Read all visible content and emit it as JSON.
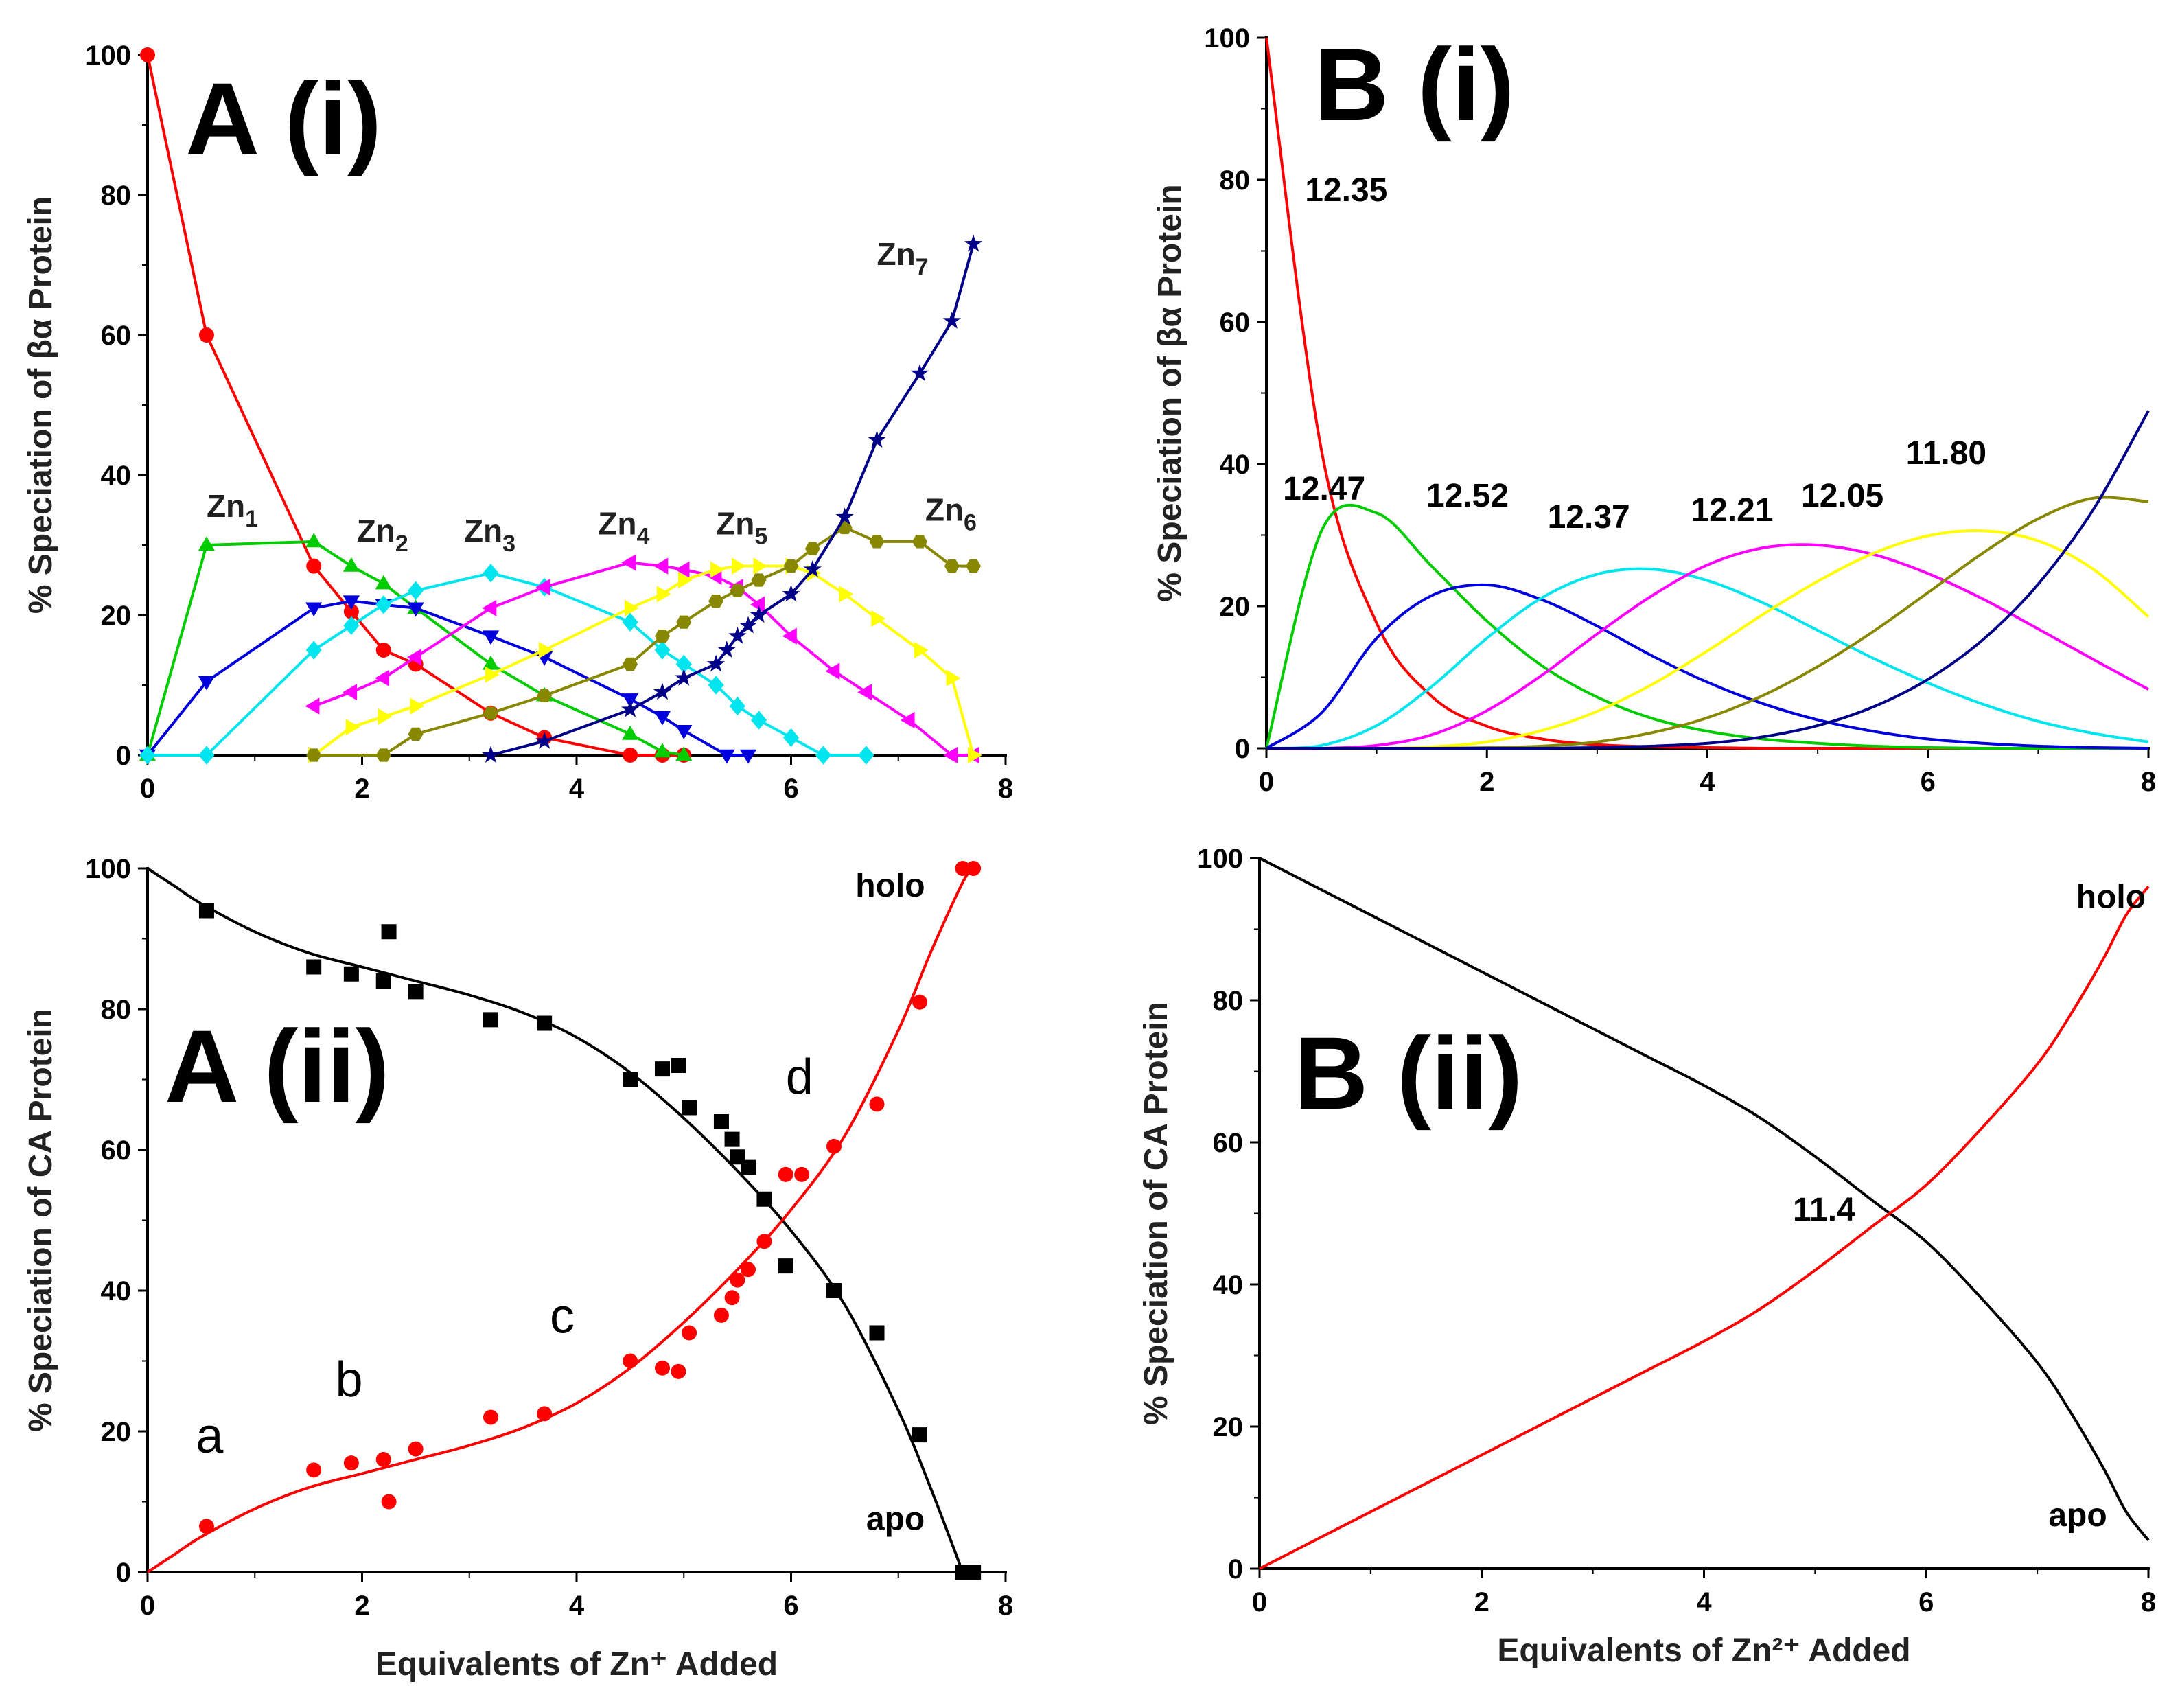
{
  "figure": {
    "colors": {
      "axis": "#000000"
    },
    "icons": [
      "marker-circle-icon",
      "marker-triangle-up-icon",
      "marker-triangle-down-icon",
      "marker-diamond-icon",
      "marker-triangle-left-icon",
      "marker-triangle-right-icon",
      "marker-hexagon-icon",
      "marker-star-icon",
      "marker-square-icon"
    ]
  },
  "chart_data": [
    {
      "id": "Ai",
      "type": "line",
      "panel_label": "A (i)",
      "title": "",
      "xlabel": "",
      "ylabel": "% Speciation of βα Protein",
      "xlim": [
        0,
        8
      ],
      "ylim": [
        0,
        100
      ],
      "xticks": [
        0,
        2,
        4,
        6,
        8
      ],
      "yticks": [
        0,
        20,
        40,
        60,
        80,
        100
      ],
      "grid": false,
      "species_labels": [
        {
          "text": "Zn",
          "sub": "1",
          "x": 0.55,
          "y": 34
        },
        {
          "text": "Zn",
          "sub": "2",
          "x": 1.95,
          "y": 30.5
        },
        {
          "text": "Zn",
          "sub": "3",
          "x": 2.95,
          "y": 30.5
        },
        {
          "text": "Zn",
          "sub": "4",
          "x": 4.2,
          "y": 31.5
        },
        {
          "text": "Zn",
          "sub": "5",
          "x": 5.3,
          "y": 31.5
        },
        {
          "text": "Zn",
          "sub": "6",
          "x": 7.25,
          "y": 33.5
        },
        {
          "text": "Zn",
          "sub": "7",
          "x": 6.8,
          "y": 70
        }
      ],
      "series": [
        {
          "name": "Zn0",
          "color": "#ff0000",
          "marker": "circle",
          "x": [
            0,
            0.55,
            1.55,
            1.9,
            2.2,
            2.5,
            3.2,
            3.7,
            4.5,
            4.8,
            5.0
          ],
          "y": [
            100,
            60,
            27,
            20.5,
            15,
            13,
            6,
            2.5,
            0,
            0,
            0
          ]
        },
        {
          "name": "Zn1",
          "color": "#00cc00",
          "marker": "triangle-up",
          "x": [
            0,
            0.55,
            1.55,
            1.9,
            2.2,
            2.5,
            3.2,
            3.7,
            4.5,
            4.8,
            5.0
          ],
          "y": [
            0,
            30,
            30.5,
            27,
            24.5,
            21,
            13,
            8.5,
            3,
            0.5,
            0
          ]
        },
        {
          "name": "Zn2",
          "color": "#0000dd",
          "marker": "triangle-down",
          "x": [
            0,
            0.55,
            1.55,
            1.9,
            2.2,
            2.5,
            3.2,
            3.7,
            4.5,
            4.8,
            5.0,
            5.4,
            5.6
          ],
          "y": [
            0,
            10.5,
            21,
            22,
            21.5,
            21,
            17,
            14,
            8,
            5.5,
            3.5,
            0,
            0
          ]
        },
        {
          "name": "Zn3",
          "color": "#00e5ee",
          "marker": "diamond",
          "x": [
            0,
            0.55,
            1.55,
            1.9,
            2.2,
            2.5,
            3.2,
            3.7,
            4.5,
            4.8,
            5.0,
            5.3,
            5.5,
            5.7,
            6.0,
            6.3,
            6.7
          ],
          "y": [
            0,
            0,
            15,
            18.5,
            21.5,
            23.5,
            26,
            24,
            19,
            15,
            13,
            10,
            7,
            5,
            2.5,
            0,
            0
          ]
        },
        {
          "name": "Zn4",
          "color": "#ff00ff",
          "marker": "triangle-left",
          "x": [
            1.55,
            1.9,
            2.2,
            2.5,
            3.2,
            3.7,
            4.5,
            4.8,
            5.0,
            5.3,
            5.5,
            5.7,
            6.0,
            6.4,
            6.7,
            7.1,
            7.5,
            7.7
          ],
          "y": [
            7,
            9,
            11,
            14,
            21,
            24,
            27.5,
            27,
            26.5,
            25.5,
            24,
            21.5,
            17,
            12,
            9,
            5,
            0,
            0
          ]
        },
        {
          "name": "Zn5",
          "color": "#ffff00",
          "marker": "triangle-right",
          "x": [
            1.55,
            1.9,
            2.2,
            2.5,
            3.2,
            3.7,
            4.5,
            4.8,
            5.0,
            5.3,
            5.5,
            5.7,
            6.0,
            6.2,
            6.5,
            6.8,
            7.2,
            7.5,
            7.7
          ],
          "y": [
            0,
            4,
            5.5,
            7,
            11.5,
            15,
            21,
            23,
            25,
            26.5,
            27,
            27,
            27,
            26,
            23,
            19.5,
            15,
            11,
            0
          ]
        },
        {
          "name": "Zn6",
          "color": "#888800",
          "marker": "hexagon",
          "x": [
            1.55,
            2.2,
            2.5,
            3.2,
            3.7,
            4.5,
            4.8,
            5.0,
            5.3,
            5.5,
            5.7,
            6.0,
            6.2,
            6.5,
            6.8,
            7.2,
            7.5,
            7.7
          ],
          "y": [
            0,
            0,
            3,
            6,
            8.5,
            13,
            17,
            19,
            22,
            23.5,
            25,
            27,
            29.5,
            32.5,
            30.5,
            30.5,
            27,
            27
          ]
        },
        {
          "name": "Zn7",
          "color": "#000088",
          "marker": "star",
          "x": [
            3.2,
            3.7,
            4.5,
            4.8,
            5.0,
            5.3,
            5.4,
            5.5,
            5.6,
            5.7,
            6.0,
            6.2,
            6.5,
            6.8,
            7.2,
            7.5,
            7.7
          ],
          "y": [
            0,
            2,
            6.5,
            9,
            11,
            13,
            15,
            17,
            18.5,
            20,
            23,
            26.5,
            34,
            45,
            54.5,
            62,
            73
          ]
        }
      ]
    },
    {
      "id": "Bi",
      "type": "line",
      "panel_label": "B (i)",
      "title": "",
      "xlabel": "",
      "ylabel": "% Speciation of βα Protein",
      "xlim": [
        0,
        8
      ],
      "ylim": [
        0,
        100
      ],
      "xticks": [
        0,
        2,
        4,
        6,
        8
      ],
      "yticks": [
        0,
        20,
        40,
        60,
        80,
        100
      ],
      "grid": false,
      "annotations": [
        {
          "text": "12.35",
          "x": 0.35,
          "y": 77
        },
        {
          "text": "12.47",
          "x": 0.15,
          "y": 35
        },
        {
          "text": "12.52",
          "x": 1.45,
          "y": 34
        },
        {
          "text": "12.37",
          "x": 2.55,
          "y": 31
        },
        {
          "text": "12.21",
          "x": 3.85,
          "y": 32
        },
        {
          "text": "12.05",
          "x": 4.85,
          "y": 34
        },
        {
          "text": "11.80",
          "x": 5.8,
          "y": 40
        }
      ],
      "series": [
        {
          "name": "Zn0",
          "color": "#ff0000",
          "values": [
            100,
            41.9,
            17.6,
            7.3,
            3.1,
            1.3,
            0.5,
            0.2,
            0.1,
            0,
            0,
            0,
            0,
            0,
            0,
            0,
            0
          ]
        },
        {
          "name": "Zn1",
          "color": "#00cc00",
          "values": [
            0,
            30.6,
            33.1,
            25.6,
            17.9,
            11.6,
            7.2,
            4.2,
            2.4,
            1.3,
            0.7,
            0.3,
            0.1,
            0,
            0,
            0,
            0
          ]
        },
        {
          "name": "Zn2",
          "color": "#0000dd",
          "values": [
            0,
            5.0,
            15.5,
            21.5,
            23.0,
            20.9,
            17.2,
            13.0,
            9.3,
            6.3,
            4.0,
            2.4,
            1.3,
            0.7,
            0.3,
            0.1,
            0
          ]
        },
        {
          "name": "Zn3",
          "color": "#00e5ee",
          "values": [
            0,
            0.4,
            3.2,
            8.7,
            15.5,
            21.2,
            24.5,
            25.2,
            23.6,
            20.5,
            16.6,
            12.7,
            9.2,
            6.2,
            3.8,
            2.1,
            0.9
          ]
        },
        {
          "name": "Zn4",
          "color": "#ff00ff",
          "values": [
            0,
            0,
            0.4,
            1.9,
            5.3,
            10.3,
            16.1,
            21.5,
            25.8,
            28.2,
            28.6,
            27.3,
            24.6,
            21.0,
            16.8,
            12.5,
            8.3
          ]
        },
        {
          "name": "Zn5",
          "color": "#ffff00",
          "values": [
            0,
            0,
            0,
            0.2,
            0.9,
            2.5,
            5.2,
            9.0,
            13.7,
            18.8,
            23.5,
            27.4,
            29.9,
            30.6,
            29.2,
            25.2,
            18.5
          ]
        },
        {
          "name": "Zn6",
          "color": "#888800",
          "values": [
            0,
            0,
            0,
            0,
            0.1,
            0.3,
            0.9,
            2.2,
            4.3,
            7.4,
            11.5,
            16.4,
            21.9,
            27.5,
            32.3,
            35.2,
            34.7
          ]
        },
        {
          "name": "Zn7",
          "color": "#000088",
          "values": [
            0,
            0,
            0,
            0,
            0,
            0,
            0.1,
            0.3,
            0.7,
            1.6,
            3.2,
            5.8,
            9.7,
            15.3,
            23.1,
            33.6,
            47.5
          ]
        }
      ],
      "curve_x": [
        0,
        0.5,
        1,
        1.5,
        2,
        2.5,
        3,
        3.5,
        4,
        4.5,
        5,
        5.5,
        6,
        6.5,
        7,
        7.5,
        8
      ]
    },
    {
      "id": "Aii",
      "type": "scatter",
      "panel_label": "A (ii)",
      "title": "",
      "xlabel": "Equivalents of Zn⁺ Added",
      "ylabel": "% Speciation of CA Protein",
      "xlim": [
        0,
        8
      ],
      "ylim": [
        0,
        100
      ],
      "xticks": [
        0,
        2,
        4,
        6,
        8
      ],
      "yticks": [
        0,
        20,
        40,
        60,
        80,
        100
      ],
      "grid": false,
      "annotations": [
        {
          "text": "a",
          "x": 0.45,
          "y": 17,
          "style": "light"
        },
        {
          "text": "b",
          "x": 1.75,
          "y": 25,
          "style": "light"
        },
        {
          "text": "c",
          "x": 3.75,
          "y": 34,
          "style": "light"
        },
        {
          "text": "d",
          "x": 5.95,
          "y": 68,
          "style": "light"
        },
        {
          "text": "holo",
          "x": 6.6,
          "y": 96,
          "style": "bold"
        },
        {
          "text": "apo",
          "x": 6.7,
          "y": 6,
          "style": "bold"
        }
      ],
      "series": [
        {
          "name": "apo",
          "color": "#000000",
          "marker": "square",
          "x": [
            0.55,
            1.55,
            1.9,
            2.2,
            2.25,
            2.5,
            3.2,
            3.7,
            4.5,
            4.8,
            4.95,
            5.05,
            5.35,
            5.45,
            5.5,
            5.6,
            5.75,
            5.95,
            6.4,
            6.8,
            7.2,
            7.6,
            7.7
          ],
          "y": [
            94,
            86,
            85,
            84,
            91,
            82.5,
            78.5,
            78,
            70,
            71.5,
            72,
            66,
            64,
            61.5,
            59,
            57.5,
            53,
            43.5,
            40,
            34,
            19.5,
            0,
            0
          ]
        },
        {
          "name": "holo",
          "color": "#ff0000",
          "marker": "circle",
          "x": [
            0.55,
            1.55,
            1.9,
            2.2,
            2.25,
            2.5,
            3.2,
            3.7,
            4.5,
            4.8,
            4.95,
            5.05,
            5.35,
            5.45,
            5.5,
            5.6,
            5.75,
            5.95,
            6.1,
            6.4,
            6.8,
            7.2,
            7.6,
            7.7
          ],
          "y": [
            6.5,
            14.5,
            15.5,
            16,
            10,
            17.5,
            22,
            22.5,
            30,
            29,
            28.5,
            34,
            36.5,
            39,
            41.5,
            43,
            47,
            56.5,
            56.5,
            60.5,
            66.5,
            81,
            100,
            100
          ]
        },
        {
          "name": "apo-fit",
          "color": "#000000",
          "x": [
            0,
            0.25,
            0.5,
            1,
            1.5,
            2,
            2.5,
            3,
            3.5,
            4,
            4.5,
            5,
            5.5,
            6,
            6.5,
            7,
            7.3,
            7.6
          ],
          "y": [
            100,
            97.5,
            95,
            91,
            88,
            86,
            84,
            82,
            79.5,
            76,
            71,
            64.5,
            57,
            48.5,
            38,
            23,
            12,
            0
          ]
        },
        {
          "name": "holo-fit",
          "color": "#ff0000",
          "x": [
            0,
            0.25,
            0.5,
            1,
            1.5,
            2,
            2.5,
            3,
            3.5,
            4,
            4.5,
            5,
            5.5,
            6,
            6.5,
            7,
            7.3,
            7.6,
            7.7
          ],
          "y": [
            0,
            2.5,
            5,
            9,
            12,
            14,
            16,
            18,
            20.5,
            24,
            29,
            35.5,
            43,
            51.5,
            62,
            77,
            88,
            98,
            100
          ]
        }
      ]
    },
    {
      "id": "Bii",
      "type": "line",
      "panel_label": "B (ii)",
      "title": "",
      "xlabel": "Equivalents of Zn²⁺ Added",
      "ylabel": "% Speciation of CA Protein",
      "xlim": [
        0,
        8
      ],
      "ylim": [
        0,
        100
      ],
      "xticks": [
        0,
        2,
        4,
        6,
        8
      ],
      "yticks": [
        0,
        20,
        40,
        60,
        80,
        100
      ],
      "grid": false,
      "annotations": [
        {
          "text": "11.4",
          "x": 4.8,
          "y": 49
        },
        {
          "text": "holo",
          "x": 7.35,
          "y": 93
        },
        {
          "text": "apo",
          "x": 7.1,
          "y": 6
        }
      ],
      "series": [
        {
          "name": "apo",
          "color": "#000000",
          "x": [
            0,
            0.5,
            1,
            1.5,
            2,
            2.5,
            3,
            3.5,
            4,
            4.5,
            5,
            5.5,
            6,
            6.5,
            7,
            7.3,
            7.6,
            7.8,
            8
          ],
          "y": [
            100,
            96,
            92,
            88,
            84,
            80,
            76,
            72,
            68,
            63.5,
            58,
            52,
            46,
            38,
            29,
            22,
            14,
            8,
            4
          ]
        },
        {
          "name": "holo",
          "color": "#ff0000",
          "x": [
            0,
            0.5,
            1,
            1.5,
            2,
            2.5,
            3,
            3.5,
            4,
            4.5,
            5,
            5.5,
            6,
            6.5,
            7,
            7.3,
            7.6,
            7.8,
            8
          ],
          "y": [
            0,
            4,
            8,
            12,
            16,
            20,
            24,
            28,
            32,
            36.5,
            42,
            48,
            54,
            62,
            71,
            78,
            86,
            92,
            96
          ]
        }
      ]
    }
  ]
}
